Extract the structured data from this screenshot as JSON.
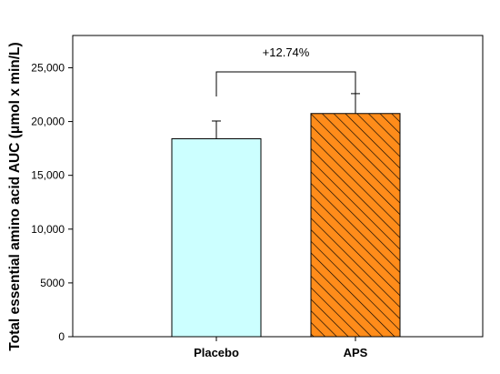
{
  "chart_data": {
    "type": "bar",
    "categories": [
      "Placebo",
      "APS"
    ],
    "values": [
      18400,
      20745
    ],
    "errors": [
      1650,
      1850
    ],
    "ylabel": "Total essential amino acid AUC (μmol x min/L)",
    "xlabel": "",
    "ylim": [
      0,
      28000
    ],
    "yticks": [
      0,
      5000,
      10000,
      15000,
      20000,
      25000
    ],
    "ytick_labels": [
      "0",
      "5000",
      "10,000",
      "15,000",
      "20,000",
      "25,000"
    ],
    "grid": false,
    "bar_colors": [
      "#ccffff",
      "#ff8c1a"
    ],
    "bar_patterns": [
      "solid",
      "diagonal-hatch"
    ],
    "annotation": {
      "text": "+12.74%",
      "between": [
        "Placebo",
        "APS"
      ]
    }
  }
}
